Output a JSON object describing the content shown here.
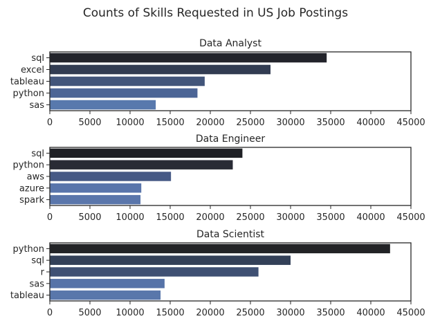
{
  "figure": {
    "title": "Counts of Skills Requested in US Job Postings"
  },
  "chart_data": [
    {
      "type": "bar",
      "orientation": "horizontal",
      "title": "Data Analyst",
      "categories": [
        "sql",
        "excel",
        "tableau",
        "python",
        "sas"
      ],
      "values": [
        34500,
        27500,
        19300,
        18400,
        13200
      ],
      "xlim": [
        0,
        45000
      ],
      "xticks": [
        0,
        5000,
        10000,
        15000,
        20000,
        25000,
        30000,
        35000,
        40000,
        45000
      ],
      "xlabel": "",
      "ylabel": "",
      "grid": false,
      "colors": [
        "#23242b",
        "#323c52",
        "#42557a",
        "#4c6596",
        "#5879ad"
      ]
    },
    {
      "type": "bar",
      "orientation": "horizontal",
      "title": "Data Engineer",
      "categories": [
        "sql",
        "python",
        "aws",
        "azure",
        "spark"
      ],
      "values": [
        24000,
        22800,
        15100,
        11400,
        11300
      ],
      "xlim": [
        0,
        45000
      ],
      "xticks": [
        0,
        5000,
        10000,
        15000,
        20000,
        25000,
        30000,
        35000,
        40000,
        45000
      ],
      "xlabel": "",
      "ylabel": "",
      "grid": false,
      "colors": [
        "#1f2025",
        "#292b35",
        "#465985",
        "#5975ab",
        "#5a76ab"
      ]
    },
    {
      "type": "bar",
      "orientation": "horizontal",
      "title": "Data Scientist",
      "categories": [
        "python",
        "sql",
        "r",
        "sas",
        "tableau"
      ],
      "values": [
        42400,
        30000,
        26000,
        14300,
        13800
      ],
      "xlim": [
        0,
        45000
      ],
      "xticks": [
        0,
        5000,
        10000,
        15000,
        20000,
        25000,
        30000,
        35000,
        40000,
        45000
      ],
      "xlabel": "",
      "ylabel": "",
      "grid": false,
      "colors": [
        "#222326",
        "#334058",
        "#3f5073",
        "#5673a8",
        "#5977ab"
      ]
    }
  ]
}
